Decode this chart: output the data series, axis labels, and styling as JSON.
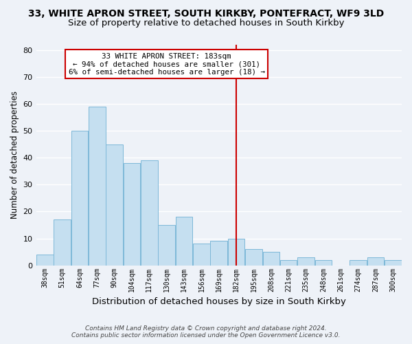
{
  "title": "33, WHITE APRON STREET, SOUTH KIRKBY, PONTEFRACT, WF9 3LD",
  "subtitle": "Size of property relative to detached houses in South Kirkby",
  "xlabel": "Distribution of detached houses by size in South Kirkby",
  "ylabel": "Number of detached properties",
  "bar_color": "#c5dff0",
  "bar_edge_color": "#7db8d8",
  "bin_labels": [
    "38sqm",
    "51sqm",
    "64sqm",
    "77sqm",
    "90sqm",
    "104sqm",
    "117sqm",
    "130sqm",
    "143sqm",
    "156sqm",
    "169sqm",
    "182sqm",
    "195sqm",
    "208sqm",
    "221sqm",
    "235sqm",
    "248sqm",
    "261sqm",
    "274sqm",
    "287sqm",
    "300sqm"
  ],
  "bar_heights": [
    4,
    17,
    50,
    59,
    45,
    38,
    39,
    15,
    18,
    8,
    9,
    10,
    6,
    5,
    2,
    3,
    2,
    0,
    2,
    3,
    2
  ],
  "ylim": [
    0,
    82
  ],
  "yticks": [
    0,
    10,
    20,
    30,
    40,
    50,
    60,
    70,
    80
  ],
  "vline_x_index": 11,
  "vline_color": "#cc0000",
  "annotation_title": "33 WHITE APRON STREET: 183sqm",
  "annotation_line1": "← 94% of detached houses are smaller (301)",
  "annotation_line2": "6% of semi-detached houses are larger (18) →",
  "annotation_box_color": "#ffffff",
  "annotation_box_edge": "#cc0000",
  "footer1": "Contains HM Land Registry data © Crown copyright and database right 2024.",
  "footer2": "Contains public sector information licensed under the Open Government Licence v3.0.",
  "background_color": "#eef2f8",
  "grid_color": "#ffffff",
  "title_fontsize": 10,
  "subtitle_fontsize": 9.5,
  "xlabel_fontsize": 9.5,
  "ylabel_fontsize": 8.5,
  "footer_fontsize": 6.5
}
